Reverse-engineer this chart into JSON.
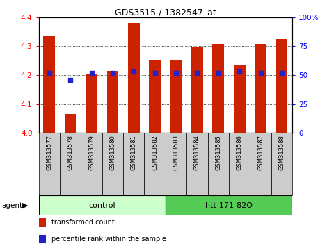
{
  "title": "GDS3515 / 1382547_at",
  "samples": [
    "GSM313577",
    "GSM313578",
    "GSM313579",
    "GSM313580",
    "GSM313581",
    "GSM313582",
    "GSM313583",
    "GSM313584",
    "GSM313585",
    "GSM313586",
    "GSM313587",
    "GSM313588"
  ],
  "transformed_counts": [
    4.335,
    4.065,
    4.205,
    4.215,
    4.38,
    4.25,
    4.25,
    4.295,
    4.305,
    4.235,
    4.305,
    4.325
  ],
  "percentile_ranks": [
    52,
    46,
    52,
    52,
    53,
    52,
    52,
    52,
    52,
    53,
    52,
    52
  ],
  "ylim_left": [
    4.0,
    4.4
  ],
  "ylim_right": [
    0,
    100
  ],
  "yticks_left": [
    4.0,
    4.1,
    4.2,
    4.3,
    4.4
  ],
  "yticks_right": [
    0,
    25,
    50,
    75,
    100
  ],
  "ytick_labels_right": [
    "0",
    "25",
    "50",
    "75",
    "100%"
  ],
  "grid_lines": [
    4.1,
    4.2,
    4.3
  ],
  "bar_color": "#CC2200",
  "dot_color": "#2222CC",
  "agent_groups": [
    {
      "label": "control",
      "start": 0,
      "end": 6,
      "color": "#CCFFCC"
    },
    {
      "label": "htt-171-82Q",
      "start": 6,
      "end": 12,
      "color": "#55CC55"
    }
  ],
  "legend_labels": [
    "transformed count",
    "percentile rank within the sample"
  ],
  "legend_colors": [
    "#CC2200",
    "#2222CC"
  ],
  "xticklabel_bg": "#CCCCCC",
  "fig_width": 4.83,
  "fig_height": 3.54,
  "dpi": 100
}
